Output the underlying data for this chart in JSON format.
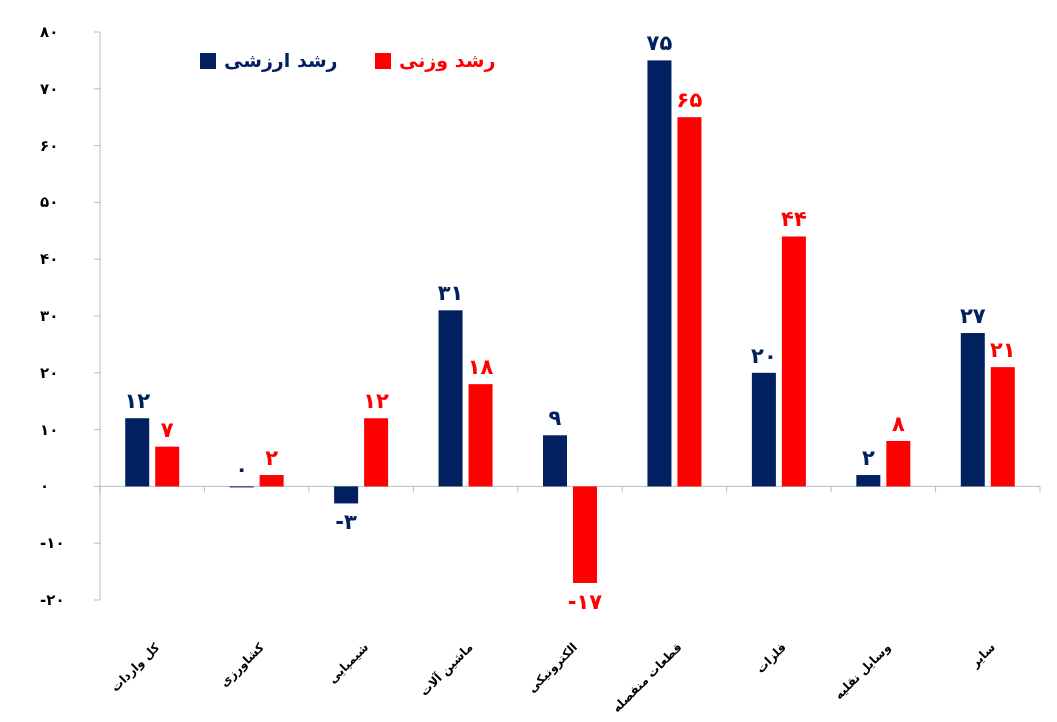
{
  "chart_data": {
    "type": "bar",
    "categories": [
      "کل واردات",
      "کشاورزی",
      "شیمیایی",
      "ماشین آلات",
      "الکترونیکی",
      "قطعات منفصله",
      "فلزات",
      "وسایل نقلیه",
      "سایر"
    ],
    "series": [
      {
        "name": "رشد ارزشی",
        "color": "#002060",
        "values": [
          12,
          0,
          -3,
          31,
          9,
          75,
          20,
          2,
          27
        ],
        "value_labels": [
          "۱۲",
          "۰",
          "-۳",
          "۳۱",
          "۹",
          "۷۵",
          "۲۰",
          "۲",
          "۲۷"
        ]
      },
      {
        "name": "رشد وزنی",
        "color": "#ff0000",
        "values": [
          7,
          2,
          12,
          18,
          -17,
          65,
          44,
          8,
          21
        ],
        "value_labels": [
          "۷",
          "۲",
          "۱۲",
          "۱۸",
          "-۱۷",
          "۶۵",
          "۴۴",
          "۸",
          "۲۱"
        ]
      }
    ],
    "ylim": [
      -20,
      80
    ],
    "yticks": [
      {
        "value": -20,
        "label": "-۲۰"
      },
      {
        "value": -10,
        "label": "-۱۰"
      },
      {
        "value": 0,
        "label": "۰"
      },
      {
        "value": 10,
        "label": "۱۰"
      },
      {
        "value": 20,
        "label": "۲۰"
      },
      {
        "value": 30,
        "label": "۳۰"
      },
      {
        "value": 40,
        "label": "۴۰"
      },
      {
        "value": 50,
        "label": "۵۰"
      },
      {
        "value": 60,
        "label": "۶۰"
      },
      {
        "value": 70,
        "label": "۷۰"
      },
      {
        "value": 80,
        "label": "۸۰"
      }
    ],
    "legend": "top left"
  }
}
